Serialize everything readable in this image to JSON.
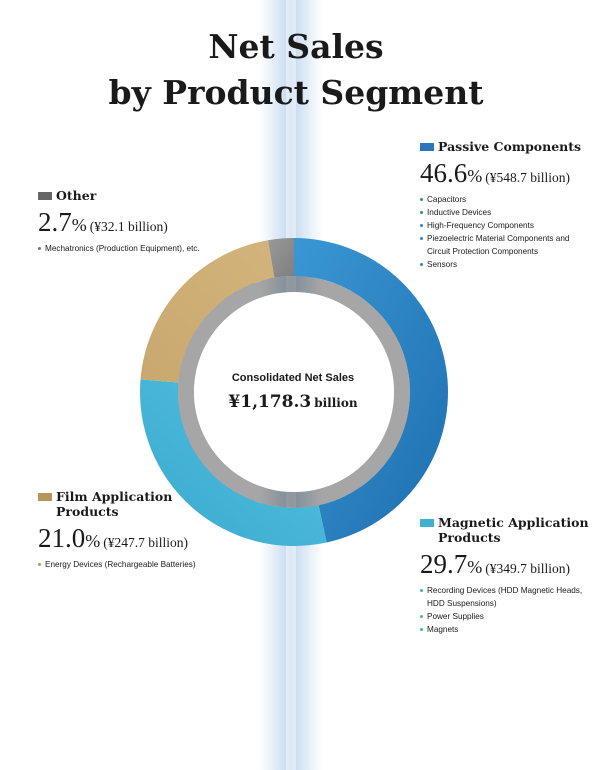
{
  "title": {
    "line1": "Net Sales",
    "line2": "by Product Segment"
  },
  "center": {
    "caption": "Consolidated Net Sales",
    "value": "¥1,178.3",
    "unit": "billion"
  },
  "chart_data": {
    "type": "pie",
    "title": "Net Sales by Product Segment",
    "center_text": "Consolidated Net Sales ¥1,178.3 billion",
    "total_billion_yen": 1178.3,
    "start": "top, clockwise",
    "slices": [
      {
        "label": "Passive Components",
        "percent": 46.6,
        "amount_billion_yen": 548.7,
        "color": "#2b86c6"
      },
      {
        "label": "Magnetic Application Products",
        "percent": 29.7,
        "amount_billion_yen": 349.7,
        "color": "#46b8d9"
      },
      {
        "label": "Film Application Products",
        "percent": 21.0,
        "amount_billion_yen": 247.7,
        "color": "#c8a468"
      },
      {
        "label": "Other",
        "percent": 2.7,
        "amount_billion_yen": 32.1,
        "color": "#8a8a8a"
      }
    ]
  },
  "segments": {
    "passive": {
      "name": "Passive Components",
      "percent": "46.6",
      "pct_sign": "%",
      "amount": "(¥548.7 billion)",
      "color": "#2b76b8",
      "dot": "#2b86c6",
      "items": [
        "Capacitors",
        "Inductive Devices",
        "High-Frequency Components",
        "Piezoelectric Material Components and Circuit Protection Components",
        "Sensors"
      ]
    },
    "magnetic": {
      "name": "Magnetic Application Products",
      "percent": "29.7",
      "pct_sign": "%",
      "amount": "(¥349.7 billion)",
      "color": "#3fb0d0",
      "dot": "#3fb0d0",
      "items": [
        "Recording Devices (HDD Magnetic Heads, HDD Suspensions)",
        "Power Supplies",
        "Magnets"
      ]
    },
    "film": {
      "name": "Film Application Products",
      "percent": "21.0",
      "pct_sign": "%",
      "amount": "(¥247.7 billion)",
      "color": "#b9955c",
      "dot": "#b9955c",
      "items": [
        "Energy Devices (Rechargeable Batteries)"
      ]
    },
    "other": {
      "name": "Other",
      "percent": "2.7",
      "pct_sign": "%",
      "amount": "(¥32.1 billion)",
      "color": "#666666",
      "dot": "#777777",
      "items": [
        "Mechatronics (Production Equipment), etc."
      ]
    }
  }
}
